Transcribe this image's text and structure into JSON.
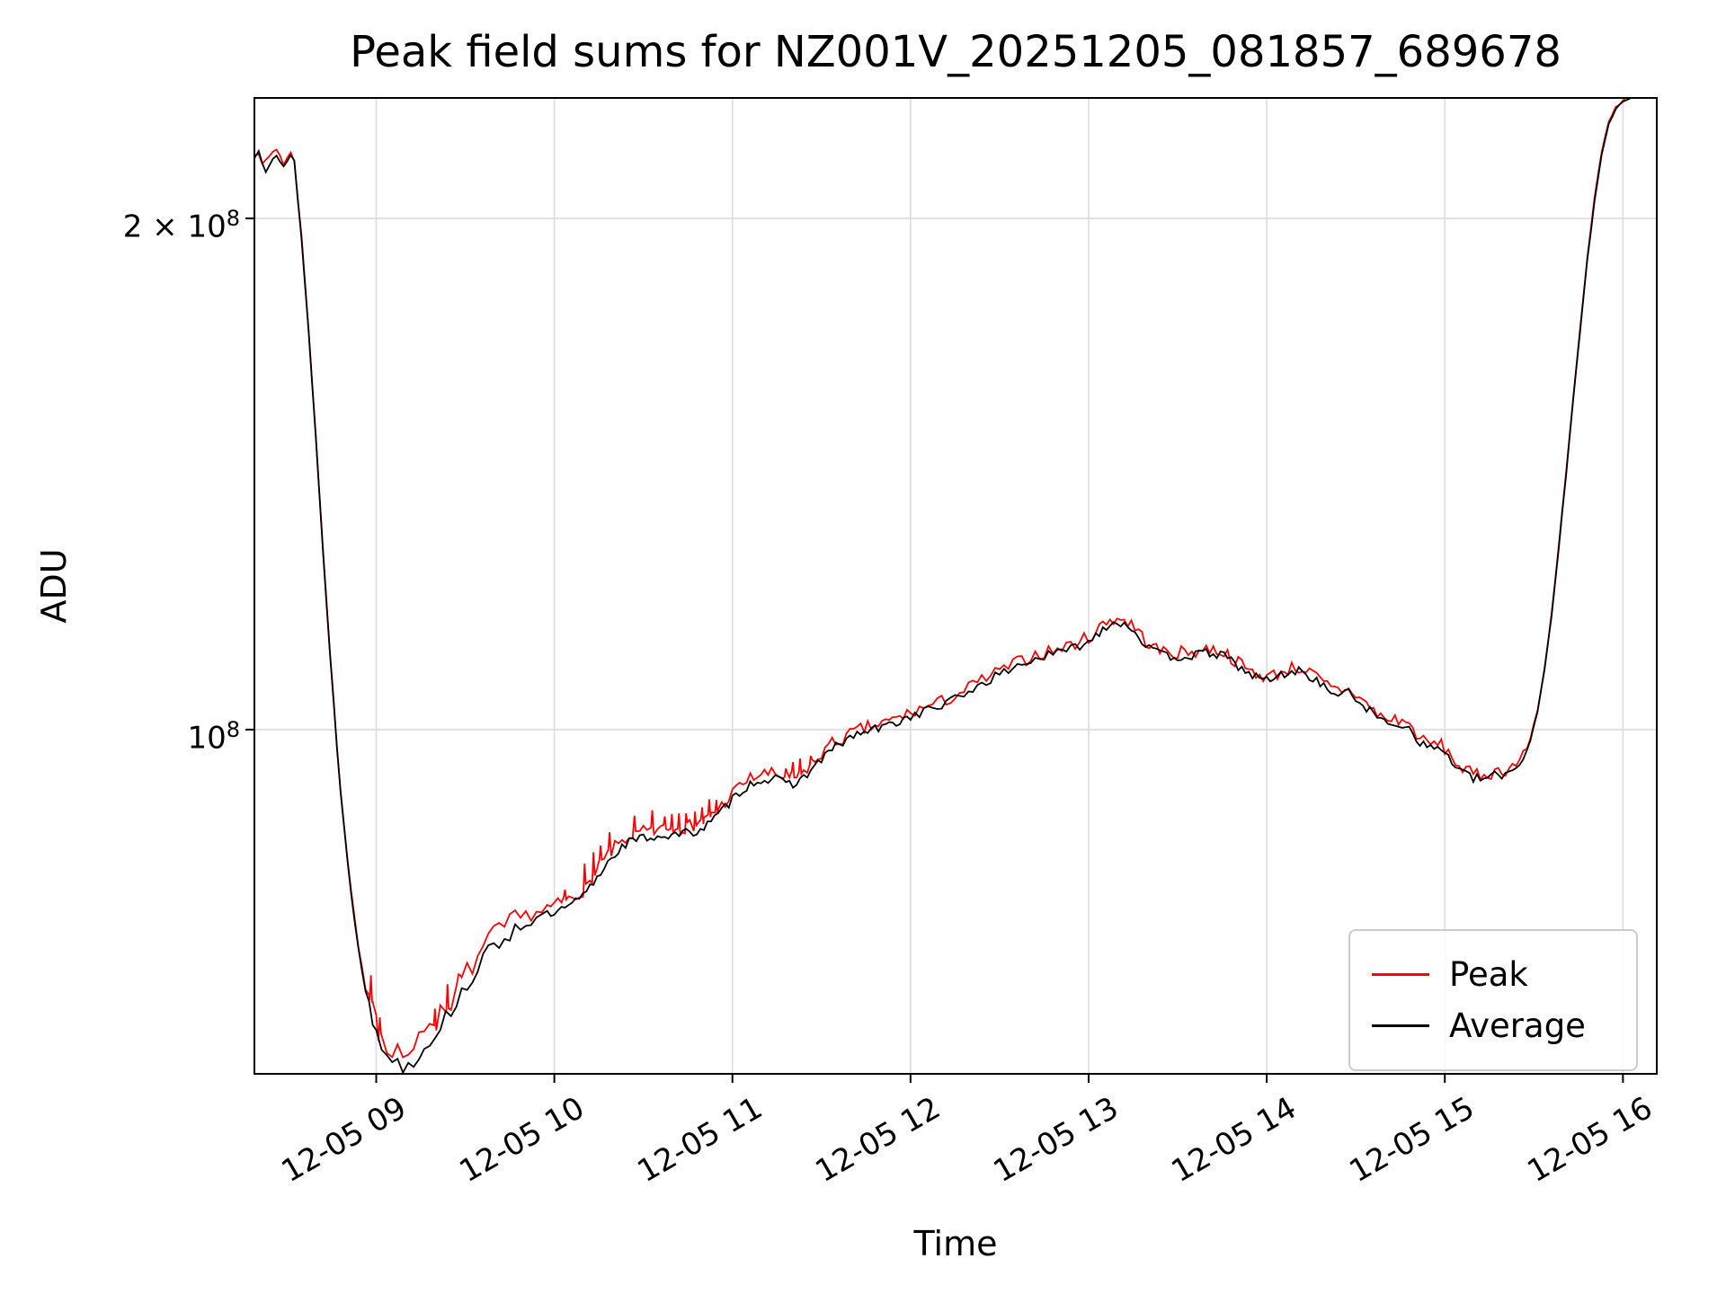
{
  "figure": {
    "background": "#ffffff"
  },
  "chart_data": {
    "type": "line",
    "title": "Peak field sums for NZ001V_20251205_081857_689678",
    "xlabel": "Time",
    "ylabel": "ADU",
    "grid": true,
    "legend": {
      "position": "lower right"
    },
    "x_axis": {
      "unit": "time of day on 12-05 (decimal hours)",
      "min": 8.316,
      "max": 16.19,
      "ticks": [
        {
          "t": 9,
          "label": "12-05 09"
        },
        {
          "t": 10,
          "label": "12-05 10"
        },
        {
          "t": 11,
          "label": "12-05 11"
        },
        {
          "t": 12,
          "label": "12-05 12"
        },
        {
          "t": 13,
          "label": "12-05 13"
        },
        {
          "t": 14,
          "label": "12-05 14"
        },
        {
          "t": 15,
          "label": "12-05 15"
        },
        {
          "t": 16,
          "label": "12-05 16"
        }
      ]
    },
    "y_axis": {
      "scale": "log",
      "unit": "ADU",
      "values_in": "1e8 ADU",
      "min": 0.627,
      "max": 2.355,
      "ticks": [
        {
          "v": 2.0,
          "mantissa": "2 × 10",
          "exponent": "8"
        },
        {
          "v": 1.0,
          "mantissa": "10",
          "exponent": "8"
        }
      ]
    },
    "x": [
      8.316,
      8.34,
      8.36,
      8.38,
      8.4,
      8.42,
      8.44,
      8.46,
      8.48,
      8.5,
      8.52,
      8.54,
      8.56,
      8.58,
      8.6,
      8.62,
      8.64,
      8.66,
      8.68,
      8.7,
      8.72,
      8.74,
      8.76,
      8.78,
      8.8,
      8.82,
      8.84,
      8.86,
      8.88,
      8.9,
      8.92,
      8.94,
      8.96,
      8.98,
      9.0,
      9.03,
      9.06,
      9.09,
      9.12,
      9.15,
      9.18,
      9.21,
      9.24,
      9.27,
      9.3,
      9.33,
      9.36,
      9.39,
      9.42,
      9.45,
      9.48,
      9.51,
      9.54,
      9.57,
      9.6,
      9.63,
      9.66,
      9.69,
      9.72,
      9.75,
      9.78,
      9.81,
      9.84,
      9.87,
      9.9,
      9.93,
      9.96,
      10.0,
      10.04,
      10.08,
      10.12,
      10.16,
      10.2,
      10.24,
      10.28,
      10.32,
      10.36,
      10.4,
      10.44,
      10.48,
      10.52,
      10.56,
      10.6,
      10.64,
      10.68,
      10.72,
      10.76,
      10.8,
      10.84,
      10.88,
      10.92,
      10.96,
      11.0,
      11.04,
      11.08,
      11.12,
      11.16,
      11.2,
      11.24,
      11.28,
      11.32,
      11.36,
      11.4,
      11.44,
      11.48,
      11.52,
      11.56,
      11.6,
      11.64,
      11.68,
      11.72,
      11.76,
      11.8,
      11.84,
      11.88,
      11.92,
      11.96,
      12.0,
      12.05,
      12.1,
      12.15,
      12.2,
      12.25,
      12.3,
      12.35,
      12.4,
      12.45,
      12.5,
      12.55,
      12.6,
      12.65,
      12.7,
      12.75,
      12.8,
      12.85,
      12.9,
      12.95,
      13.0,
      13.04,
      13.08,
      13.12,
      13.16,
      13.2,
      13.24,
      13.28,
      13.32,
      13.36,
      13.4,
      13.44,
      13.48,
      13.52,
      13.56,
      13.6,
      13.64,
      13.68,
      13.72,
      13.76,
      13.8,
      13.84,
      13.88,
      13.92,
      13.96,
      14.0,
      14.04,
      14.08,
      14.12,
      14.16,
      14.2,
      14.24,
      14.28,
      14.32,
      14.36,
      14.4,
      14.44,
      14.48,
      14.52,
      14.56,
      14.6,
      14.64,
      14.68,
      14.72,
      14.76,
      14.8,
      14.84,
      14.88,
      14.92,
      14.96,
      15.0,
      15.04,
      15.08,
      15.12,
      15.16,
      15.2,
      15.24,
      15.28,
      15.32,
      15.36,
      15.4,
      15.44,
      15.48,
      15.52,
      15.56,
      15.6,
      15.64,
      15.68,
      15.72,
      15.76,
      15.8,
      15.84,
      15.88,
      15.92,
      15.96,
      16.0,
      16.05,
      16.1,
      16.19
    ],
    "series": [
      {
        "name": "Peak",
        "color": "#ff0000",
        "values": [
          2.179,
          2.199,
          2.169,
          2.149,
          2.169,
          2.189,
          2.199,
          2.179,
          2.159,
          2.169,
          2.179,
          2.169,
          2.054,
          1.954,
          1.834,
          1.723,
          1.603,
          1.493,
          1.383,
          1.283,
          1.192,
          1.112,
          1.042,
          0.977,
          0.922,
          0.877,
          0.837,
          0.802,
          0.772,
          0.746,
          0.723,
          0.703,
          0.695,
          0.682,
          0.672,
          0.662,
          0.655,
          0.65,
          0.647,
          0.644,
          0.645,
          0.649,
          0.654,
          0.66,
          0.667,
          0.673,
          0.679,
          0.686,
          0.694,
          0.702,
          0.711,
          0.719,
          0.727,
          0.735,
          0.742,
          0.749,
          0.755,
          0.761,
          0.763,
          0.767,
          0.771,
          0.774,
          0.777,
          0.779,
          0.781,
          0.783,
          0.785,
          0.787,
          0.79,
          0.794,
          0.797,
          0.804,
          0.813,
          0.825,
          0.837,
          0.848,
          0.857,
          0.863,
          0.867,
          0.869,
          0.871,
          0.872,
          0.873,
          0.873,
          0.874,
          0.875,
          0.877,
          0.879,
          0.883,
          0.889,
          0.897,
          0.907,
          0.917,
          0.926,
          0.933,
          0.938,
          0.941,
          0.942,
          0.941,
          0.938,
          0.936,
          0.938,
          0.944,
          0.954,
          0.964,
          0.973,
          0.981,
          0.985,
          0.991,
          0.996,
          1.0,
          1.003,
          1.005,
          1.008,
          1.011,
          1.015,
          1.019,
          1.023,
          1.028,
          1.032,
          1.036,
          1.041,
          1.047,
          1.054,
          1.062,
          1.069,
          1.076,
          1.082,
          1.089,
          1.095,
          1.101,
          1.107,
          1.11,
          1.113,
          1.117,
          1.122,
          1.127,
          1.133,
          1.142,
          1.154,
          1.161,
          1.163,
          1.16,
          1.154,
          1.142,
          1.128,
          1.118,
          1.113,
          1.111,
          1.11,
          1.11,
          1.111,
          1.112,
          1.114,
          1.116,
          1.114,
          1.11,
          1.103,
          1.095,
          1.087,
          1.081,
          1.077,
          1.075,
          1.077,
          1.081,
          1.086,
          1.088,
          1.086,
          1.081,
          1.073,
          1.064,
          1.058,
          1.055,
          1.056,
          1.053,
          1.045,
          1.035,
          1.026,
          1.018,
          1.013,
          1.014,
          1.013,
          1.006,
          0.995,
          0.984,
          0.98,
          0.982,
          0.975,
          0.963,
          0.952,
          0.945,
          0.941,
          0.94,
          0.942,
          0.944,
          0.946,
          0.949,
          0.955,
          0.964,
          0.987,
          1.027,
          1.087,
          1.172,
          1.283,
          1.413,
          1.563,
          1.723,
          1.894,
          2.054,
          2.184,
          2.275,
          2.325,
          2.35,
          2.36,
          2.365,
          2.37
        ],
        "spikes": [
          [
            8.97,
            0.706
          ],
          [
            9.02,
            0.684
          ],
          [
            9.33,
            0.693
          ],
          [
            9.4,
            0.705
          ],
          [
            9.47,
            0.716
          ],
          [
            10.06,
            0.806
          ],
          [
            10.17,
            0.827
          ],
          [
            10.22,
            0.845
          ],
          [
            10.26,
            0.858
          ],
          [
            10.31,
            0.868
          ],
          [
            10.45,
            0.884
          ],
          [
            10.55,
            0.889
          ],
          [
            10.62,
            0.894
          ],
          [
            10.66,
            0.897
          ],
          [
            10.7,
            0.898
          ],
          [
            10.74,
            0.899
          ],
          [
            10.79,
            0.9
          ],
          [
            10.83,
            0.902
          ],
          [
            10.87,
            0.905
          ],
          [
            10.91,
            0.908
          ],
          [
            11.3,
            0.952
          ],
          [
            11.34,
            0.951
          ],
          [
            11.38,
            0.954
          ],
          [
            11.44,
            0.963
          ]
        ]
      },
      {
        "name": "Average",
        "color": "#000000",
        "values": [
          2.17,
          2.19,
          2.16,
          2.14,
          2.16,
          2.18,
          2.19,
          2.17,
          2.15,
          2.16,
          2.17,
          2.16,
          2.05,
          1.95,
          1.83,
          1.72,
          1.6,
          1.49,
          1.38,
          1.28,
          1.19,
          1.11,
          1.04,
          0.975,
          0.92,
          0.875,
          0.835,
          0.8,
          0.77,
          0.745,
          0.722,
          0.702,
          0.685,
          0.672,
          0.662,
          0.652,
          0.645,
          0.64,
          0.637,
          0.635,
          0.636,
          0.639,
          0.644,
          0.65,
          0.657,
          0.663,
          0.669,
          0.676,
          0.684,
          0.692,
          0.7,
          0.708,
          0.716,
          0.724,
          0.731,
          0.738,
          0.744,
          0.75,
          0.755,
          0.759,
          0.763,
          0.766,
          0.769,
          0.771,
          0.773,
          0.775,
          0.777,
          0.779,
          0.782,
          0.786,
          0.791,
          0.798,
          0.807,
          0.818,
          0.83,
          0.841,
          0.85,
          0.856,
          0.86,
          0.862,
          0.864,
          0.865,
          0.866,
          0.866,
          0.867,
          0.868,
          0.87,
          0.872,
          0.876,
          0.882,
          0.89,
          0.9,
          0.91,
          0.919,
          0.926,
          0.931,
          0.934,
          0.935,
          0.934,
          0.931,
          0.929,
          0.931,
          0.937,
          0.946,
          0.956,
          0.965,
          0.973,
          0.98,
          0.986,
          0.991,
          0.995,
          0.998,
          1.0,
          1.003,
          1.006,
          1.01,
          1.014,
          1.018,
          1.023,
          1.027,
          1.031,
          1.036,
          1.042,
          1.049,
          1.057,
          1.064,
          1.071,
          1.077,
          1.084,
          1.09,
          1.096,
          1.101,
          1.104,
          1.107,
          1.111,
          1.116,
          1.121,
          1.127,
          1.136,
          1.148,
          1.155,
          1.157,
          1.154,
          1.148,
          1.136,
          1.122,
          1.112,
          1.107,
          1.105,
          1.104,
          1.104,
          1.105,
          1.106,
          1.108,
          1.11,
          1.108,
          1.104,
          1.098,
          1.09,
          1.082,
          1.076,
          1.072,
          1.07,
          1.072,
          1.076,
          1.081,
          1.083,
          1.081,
          1.076,
          1.068,
          1.059,
          1.053,
          1.05,
          1.051,
          1.048,
          1.04,
          1.03,
          1.021,
          1.013,
          1.008,
          1.009,
          1.008,
          1.001,
          0.99,
          0.979,
          0.975,
          0.977,
          0.97,
          0.958,
          0.947,
          0.94,
          0.936,
          0.935,
          0.937,
          0.939,
          0.941,
          0.944,
          0.95,
          0.962,
          0.985,
          1.025,
          1.085,
          1.17,
          1.28,
          1.41,
          1.56,
          1.72,
          1.89,
          2.05,
          2.18,
          2.27,
          2.32,
          2.345,
          2.355,
          2.36,
          2.365
        ]
      }
    ]
  }
}
